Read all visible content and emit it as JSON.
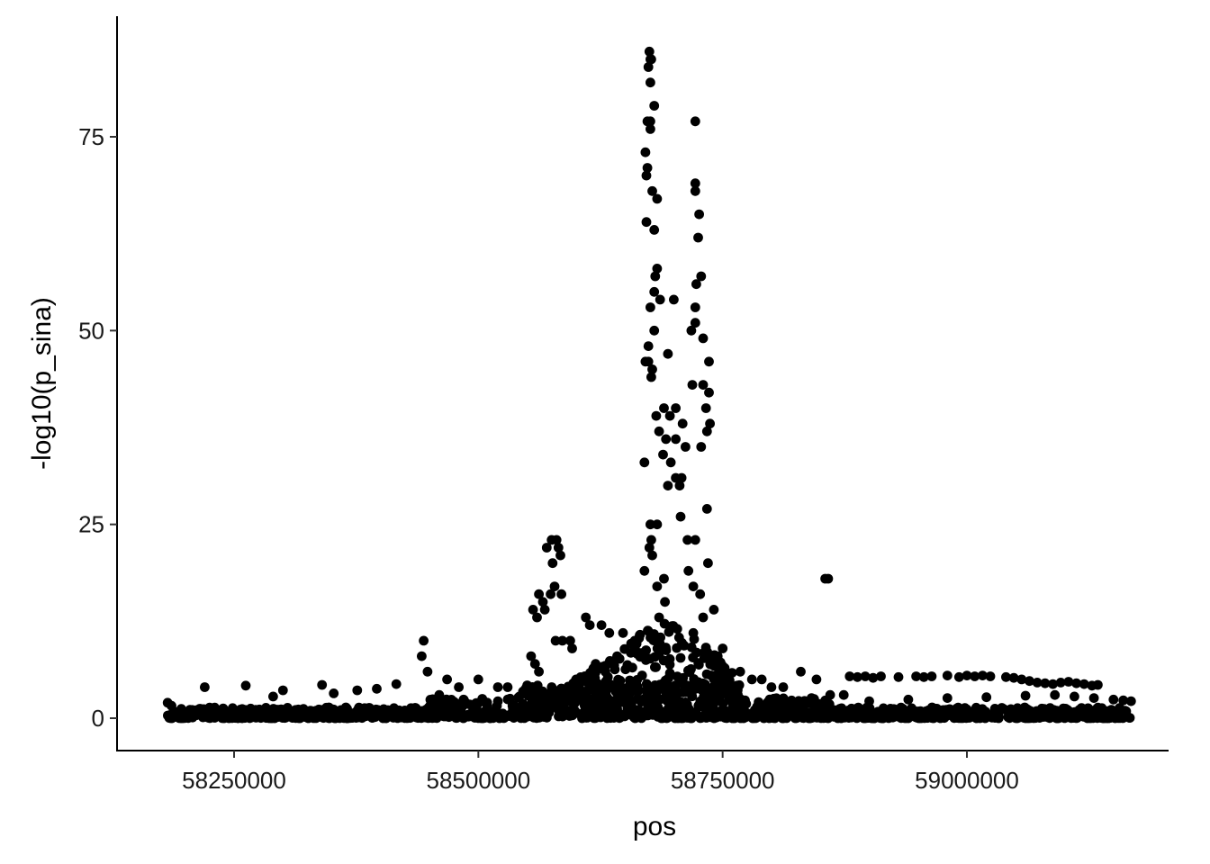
{
  "chart_data": {
    "type": "scatter",
    "title": "",
    "xlabel": "pos",
    "ylabel": "-log10(p_sina)",
    "xlim": [
      58125000,
      59175000
    ],
    "ylim": [
      -4,
      90
    ],
    "xticks": [
      58250000,
      58500000,
      58750000,
      59000000
    ],
    "xtick_labels": [
      "58250000",
      "58500000",
      "58750000",
      "59000000"
    ],
    "yticks": [
      0,
      25,
      50,
      75
    ],
    "ytick_labels": [
      "0",
      "25",
      "50",
      "75"
    ],
    "grid": false,
    "legend": "none",
    "point_color": "#000000",
    "series": [
      {
        "points": [
          [
            58675000,
            86
          ],
          [
            58676000,
            85
          ],
          [
            58677000,
            85
          ],
          [
            58674000,
            84
          ],
          [
            58676000,
            82
          ],
          [
            58680000,
            79
          ],
          [
            58673000,
            77
          ],
          [
            58676000,
            76
          ],
          [
            58676000,
            77
          ],
          [
            58722000,
            77
          ],
          [
            58671000,
            73
          ],
          [
            58673000,
            71
          ],
          [
            58672000,
            70
          ],
          [
            58722000,
            69
          ],
          [
            58722000,
            68
          ],
          [
            58678000,
            68
          ],
          [
            58683000,
            67
          ],
          [
            58726000,
            65
          ],
          [
            58672000,
            64
          ],
          [
            58680000,
            63
          ],
          [
            58725000,
            62
          ],
          [
            58683000,
            58
          ],
          [
            58681000,
            57
          ],
          [
            58728000,
            57
          ],
          [
            58723000,
            56
          ],
          [
            58680000,
            55
          ],
          [
            58686000,
            54
          ],
          [
            58700000,
            54
          ],
          [
            58676000,
            53
          ],
          [
            58722000,
            53
          ],
          [
            58722000,
            51
          ],
          [
            58680000,
            50
          ],
          [
            58718000,
            50
          ],
          [
            58730000,
            49
          ],
          [
            58674000,
            48
          ],
          [
            58694000,
            47
          ],
          [
            58671000,
            46
          ],
          [
            58674000,
            46
          ],
          [
            58736000,
            46
          ],
          [
            58678000,
            45
          ],
          [
            58677000,
            44
          ],
          [
            58719000,
            43
          ],
          [
            58730000,
            43
          ],
          [
            58736000,
            42
          ],
          [
            58690000,
            40
          ],
          [
            58702000,
            40
          ],
          [
            58733000,
            40
          ],
          [
            58682000,
            39
          ],
          [
            58696000,
            39
          ],
          [
            58737000,
            38
          ],
          [
            58709000,
            38
          ],
          [
            58685000,
            37
          ],
          [
            58734000,
            37
          ],
          [
            58692000,
            36
          ],
          [
            58702000,
            36
          ],
          [
            58712000,
            35
          ],
          [
            58728000,
            35
          ],
          [
            58689000,
            34
          ],
          [
            58697000,
            33
          ],
          [
            58670000,
            33
          ],
          [
            58702000,
            31
          ],
          [
            58708000,
            31
          ],
          [
            58694000,
            30
          ],
          [
            58706000,
            30
          ],
          [
            58734000,
            27
          ],
          [
            58707000,
            26
          ],
          [
            58676000,
            25
          ],
          [
            58683000,
            25
          ],
          [
            58677000,
            23
          ],
          [
            58714000,
            23
          ],
          [
            58722000,
            23
          ],
          [
            58675000,
            22
          ],
          [
            58678000,
            21
          ],
          [
            58735000,
            20
          ],
          [
            58670000,
            19
          ],
          [
            58715000,
            19
          ],
          [
            58690000,
            18
          ],
          [
            58683000,
            17
          ],
          [
            58720000,
            17
          ],
          [
            58727000,
            16
          ],
          [
            58691000,
            15
          ],
          [
            58741000,
            14
          ],
          [
            58685000,
            13
          ],
          [
            58730000,
            13
          ],
          [
            58720000,
            11
          ],
          [
            58750000,
            9
          ],
          [
            58745000,
            8
          ],
          [
            58580000,
            23
          ],
          [
            58575000,
            23
          ],
          [
            58570000,
            22
          ],
          [
            58582000,
            22
          ],
          [
            58584000,
            21
          ],
          [
            58576000,
            20
          ],
          [
            58578000,
            17
          ],
          [
            58562000,
            16
          ],
          [
            58574000,
            16
          ],
          [
            58585000,
            16
          ],
          [
            58566000,
            15
          ],
          [
            58568000,
            14
          ],
          [
            58556000,
            14
          ],
          [
            58560000,
            13
          ],
          [
            58579000,
            10
          ],
          [
            58586000,
            10
          ],
          [
            58594000,
            10
          ],
          [
            58596000,
            9
          ],
          [
            58554000,
            8
          ],
          [
            58558000,
            7
          ],
          [
            58600000,
            5
          ],
          [
            58562000,
            6
          ],
          [
            58610000,
            13
          ],
          [
            58614000,
            12
          ],
          [
            58626000,
            12
          ],
          [
            58634000,
            11
          ],
          [
            58648000,
            11
          ],
          [
            58660000,
            10
          ],
          [
            58642000,
            8
          ],
          [
            58620000,
            7
          ],
          [
            58630000,
            6
          ],
          [
            58618000,
            5
          ],
          [
            58444000,
            10
          ],
          [
            58442000,
            8
          ],
          [
            58448000,
            6
          ],
          [
            58468000,
            5
          ],
          [
            58500000,
            5
          ],
          [
            58520000,
            4
          ],
          [
            58480000,
            4
          ],
          [
            58530000,
            4
          ],
          [
            58460000,
            3
          ],
          [
            58855000,
            18
          ],
          [
            58858000,
            18
          ],
          [
            58768000,
            6
          ],
          [
            58780000,
            5
          ],
          [
            58790000,
            5
          ],
          [
            58800000,
            4
          ],
          [
            58812000,
            4
          ],
          [
            58830000,
            6
          ],
          [
            58846000,
            5
          ],
          [
            58860000,
            3
          ],
          [
            58874000,
            3
          ],
          [
            58880000,
            5.4
          ],
          [
            58888000,
            5.3
          ],
          [
            58896000,
            5.4
          ],
          [
            58904000,
            5.2
          ],
          [
            58912000,
            5.4
          ],
          [
            58930000,
            5.3
          ],
          [
            58948000,
            5.4
          ],
          [
            58956000,
            5.3
          ],
          [
            58964000,
            5.4
          ],
          [
            58980000,
            5.5
          ],
          [
            58992000,
            5.3
          ],
          [
            59000000,
            5.5
          ],
          [
            59008000,
            5.4
          ],
          [
            59016000,
            5.5
          ],
          [
            59024000,
            5.4
          ],
          [
            59040000,
            5.3
          ],
          [
            59048000,
            5.2
          ],
          [
            59056000,
            5.0
          ],
          [
            59064000,
            4.8
          ],
          [
            59072000,
            4.6
          ],
          [
            59080000,
            4.5
          ],
          [
            59088000,
            4.4
          ],
          [
            59096000,
            4.6
          ],
          [
            59104000,
            4.7
          ],
          [
            59112000,
            4.5
          ],
          [
            59120000,
            4.4
          ],
          [
            59128000,
            4.2
          ],
          [
            59134000,
            4.3
          ],
          [
            58220000,
            4
          ],
          [
            58262000,
            4.2
          ],
          [
            58300000,
            3.6
          ],
          [
            58340000,
            4.3
          ],
          [
            58376000,
            3.6
          ],
          [
            58396000,
            3.8
          ],
          [
            58416000,
            4.4
          ],
          [
            58290000,
            2.8
          ],
          [
            58352000,
            3.2
          ],
          [
            58182000,
            2
          ],
          [
            58186000,
            1.6
          ],
          [
            58196000,
            1.2
          ],
          [
            59160000,
            2.3
          ],
          [
            59168000,
            2.2
          ],
          [
            59150000,
            2.4
          ],
          [
            59130000,
            2.6
          ],
          [
            59110000,
            2.8
          ],
          [
            59090000,
            3
          ],
          [
            59060000,
            2.9
          ],
          [
            59020000,
            2.7
          ],
          [
            58980000,
            2.6
          ],
          [
            58940000,
            2.4
          ],
          [
            58900000,
            2.2
          ]
        ]
      }
    ]
  }
}
